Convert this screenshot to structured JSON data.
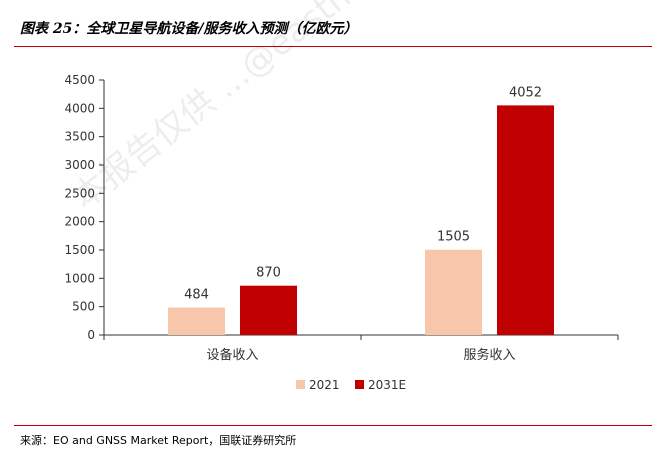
{
  "header": {
    "title": "图表 25：全球卫星导航设备/服务收入预测（亿欧元）"
  },
  "footer": {
    "source": "来源：EO and GNSS Market Report，国联证券研究所"
  },
  "watermark": {
    "text": "本报告仅供 ...@eastmoney.com 许可，不得外传"
  },
  "chart_data": {
    "type": "bar",
    "title": "",
    "categories": [
      "设备收入",
      "服务收入"
    ],
    "series": [
      {
        "name": "2021",
        "values": [
          484,
          1505
        ],
        "color": "#f8c6ab"
      },
      {
        "name": "2031E",
        "values": [
          870,
          4052
        ],
        "color": "#c00000"
      }
    ],
    "ylim": [
      0,
      4500
    ],
    "yticks": [
      0,
      500,
      1000,
      1500,
      2000,
      2500,
      3000,
      3500,
      4000,
      4500
    ],
    "grid": false,
    "legend_position": "bottom",
    "data_labels": true
  }
}
